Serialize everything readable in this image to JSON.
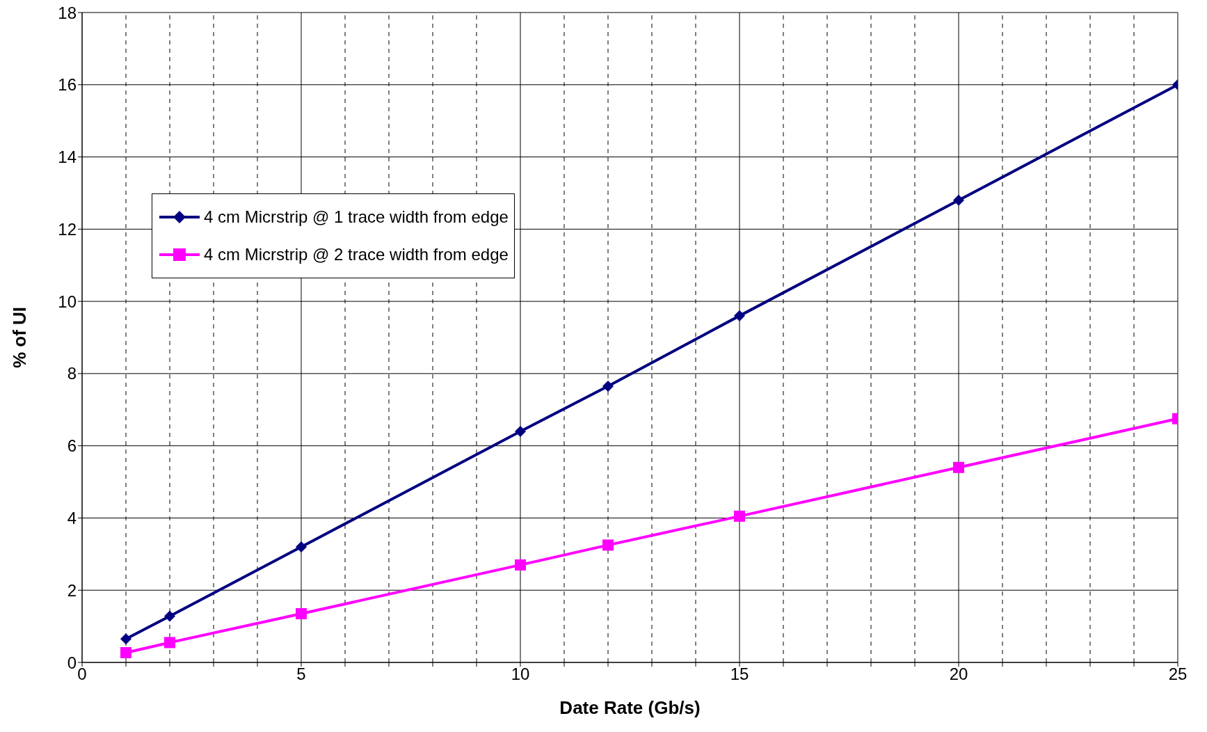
{
  "chart_data": {
    "type": "line",
    "xlabel": "Date Rate (Gb/s)",
    "ylabel": "% of UI",
    "x": [
      1,
      2,
      5,
      10,
      12,
      15,
      20,
      25
    ],
    "series": [
      {
        "name": "4 cm Micrstrip @ 1 trace width from edge",
        "color": "#000080",
        "marker": "diamond",
        "values": [
          0.65,
          1.28,
          3.2,
          6.4,
          7.65,
          9.6,
          12.8,
          16.0
        ]
      },
      {
        "name": "4 cm Micrstrip @ 2 trace width from edge",
        "color": "#ff00ff",
        "marker": "square",
        "values": [
          0.27,
          0.55,
          1.35,
          2.7,
          3.25,
          4.05,
          5.4,
          6.75
        ]
      }
    ],
    "xlim": [
      0,
      25
    ],
    "xticks": [
      0,
      {
        "value": 1,
        "label": null
      },
      {
        "value": 2,
        "label": null
      },
      {
        "value": 3,
        "label": null
      },
      {
        "value": 4,
        "label": null
      },
      5,
      {
        "value": 6,
        "label": null
      },
      {
        "value": 7,
        "label": null
      },
      {
        "value": 8,
        "label": null
      },
      {
        "value": 9,
        "label": null
      },
      10,
      {
        "value": 11,
        "label": null
      },
      {
        "value": 12,
        "label": null
      },
      {
        "value": 13,
        "label": null
      },
      {
        "value": 14,
        "label": null
      },
      15,
      {
        "value": 16,
        "label": null
      },
      {
        "value": 17,
        "label": null
      },
      {
        "value": 18,
        "label": null
      },
      {
        "value": 19,
        "label": null
      },
      20,
      {
        "value": 21,
        "label": null
      },
      {
        "value": 22,
        "label": null
      },
      {
        "value": 23,
        "label": null
      },
      {
        "value": 24,
        "label": null
      },
      25
    ],
    "ylim": [
      0,
      18
    ],
    "yticks": [
      0,
      2,
      4,
      6,
      8,
      10,
      12,
      14,
      16,
      18
    ],
    "grid": true,
    "legend": "top left",
    "line_style": "solid"
  }
}
